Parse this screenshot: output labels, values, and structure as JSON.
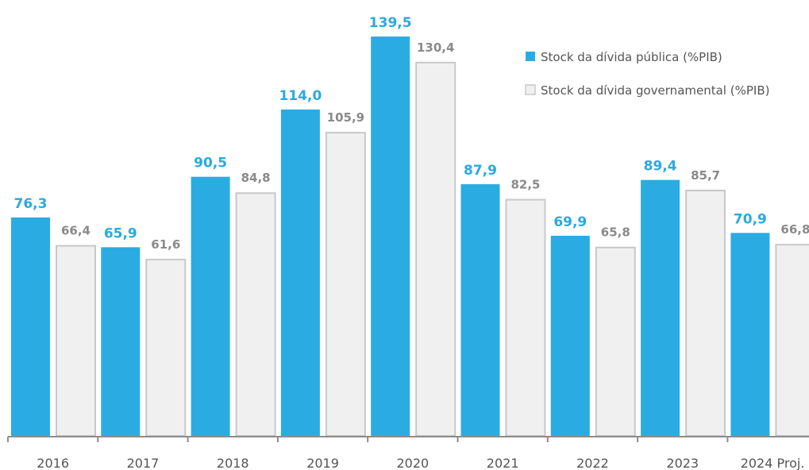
{
  "chart_data": {
    "type": "bar",
    "categories": [
      "2016",
      "2017",
      "2018",
      "2019",
      "2020",
      "2021",
      "2022",
      "2023",
      "2024 Proj."
    ],
    "series": [
      {
        "name": "Stock da dívida pública (%PIB)",
        "color": "#2aace2",
        "values": [
          76.3,
          65.9,
          90.5,
          114.0,
          139.5,
          87.9,
          69.9,
          89.4,
          70.9
        ],
        "labels": [
          "76,3",
          "65,9",
          "90,5",
          "114,0",
          "139,5",
          "87,9",
          "69,9",
          "89,4",
          "70,9"
        ]
      },
      {
        "name": "Stock da dívida governamental (%PIB)",
        "color": "#f0f0f0",
        "stroke": "#c8c8c8",
        "values": [
          66.4,
          61.6,
          84.8,
          105.9,
          130.4,
          82.5,
          65.8,
          85.7,
          66.8
        ],
        "labels": [
          "66,4",
          "61,6",
          "84,8",
          "105,9",
          "130,4",
          "82,5",
          "65,8",
          "85,7",
          "66,8"
        ]
      }
    ],
    "ylim": [
      0,
      139.5
    ],
    "legend_position": "top-right",
    "grid": false
  }
}
